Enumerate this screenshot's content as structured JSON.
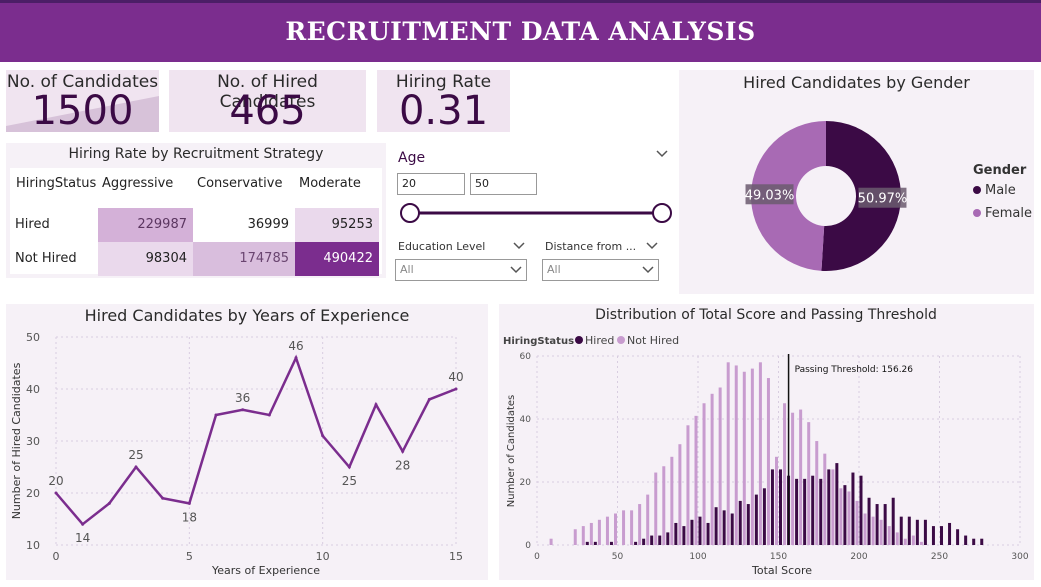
{
  "header": {
    "title": "RECRUITMENT DATA ANALYSIS"
  },
  "kpis": [
    {
      "label": "No. of Candidates",
      "value": "1500"
    },
    {
      "label": "No. of Hired Candidates",
      "value": "465"
    },
    {
      "label": "Hiring Rate",
      "value": "0.31"
    }
  ],
  "strategy_matrix": {
    "title": "Hiring Rate by Recruitment Strategy",
    "corner": "HiringStatus",
    "columns": [
      "Aggressive",
      "Conservative",
      "Moderate"
    ],
    "rows": [
      {
        "label": "Hired",
        "values": [
          "229987",
          "36999",
          "95253"
        ]
      },
      {
        "label": "Not Hired",
        "values": [
          "98304",
          "174785",
          "490422"
        ]
      }
    ],
    "colors": {
      "c1": "#d4b1d8",
      "c2": "#ead9ec",
      "c3": "#e5d2e8",
      "max": "#7b2d8e"
    }
  },
  "filters": {
    "age": {
      "title": "Age",
      "min": "20",
      "max": "50"
    },
    "education": {
      "label": "Education Level",
      "value": "All"
    },
    "distance": {
      "label": "Distance from ...",
      "value": "All"
    }
  },
  "gender_donut": {
    "title": "Hired Candidates by Gender",
    "legend_title": "Gender",
    "slices": [
      {
        "name": "Male",
        "value": 50.97,
        "label": "50.97%",
        "color": "#3b0a45"
      },
      {
        "name": "Female",
        "value": 49.03,
        "label": "49.03%",
        "color": "#a86ab4"
      }
    ]
  },
  "chart_data": [
    {
      "type": "line",
      "title": "Hired Candidates by Years of Experience",
      "xlabel": "Years of Experience",
      "ylabel": "Number of Hired Candidates",
      "xlim": [
        0,
        15
      ],
      "ylim": [
        10,
        50
      ],
      "xticks": [
        0,
        5,
        10,
        15
      ],
      "yticks": [
        10,
        20,
        30,
        40,
        50
      ],
      "color": "#7b2d8e",
      "x": [
        0,
        1,
        2,
        3,
        4,
        5,
        6,
        7,
        8,
        9,
        10,
        11,
        12,
        13,
        14,
        15
      ],
      "y": [
        20,
        14,
        18,
        25,
        19,
        18,
        35,
        36,
        35,
        46,
        31,
        25,
        37,
        28,
        38,
        40
      ],
      "labeled_points": [
        {
          "x": 0,
          "y": 20,
          "text": "20",
          "pos": "above"
        },
        {
          "x": 1,
          "y": 14,
          "text": "14",
          "pos": "below"
        },
        {
          "x": 3,
          "y": 25,
          "text": "25",
          "pos": "above"
        },
        {
          "x": 5,
          "y": 18,
          "text": "18",
          "pos": "below"
        },
        {
          "x": 7,
          "y": 36,
          "text": "36",
          "pos": "above"
        },
        {
          "x": 9,
          "y": 46,
          "text": "46",
          "pos": "above"
        },
        {
          "x": 11,
          "y": 25,
          "text": "25",
          "pos": "below"
        },
        {
          "x": 13,
          "y": 28,
          "text": "28",
          "pos": "below"
        },
        {
          "x": 15,
          "y": 40,
          "text": "40",
          "pos": "above"
        }
      ]
    },
    {
      "type": "bar",
      "title": "Distribution of Total Score and Passing Threshold",
      "xlabel": "Total Score",
      "ylabel": "Number of Candidates",
      "legend_title": "HiringStatus",
      "xlim": [
        0,
        300
      ],
      "ylim": [
        0,
        60
      ],
      "xticks": [
        0,
        50,
        100,
        150,
        200,
        250,
        300
      ],
      "yticks": [
        0,
        20,
        40,
        60
      ],
      "threshold": {
        "value": 156.26,
        "label": "Passing Threshold: 156.26"
      },
      "bin_centers": [
        10,
        15,
        20,
        25,
        30,
        35,
        40,
        45,
        50,
        55,
        60,
        65,
        70,
        75,
        80,
        85,
        90,
        95,
        100,
        105,
        110,
        115,
        120,
        125,
        130,
        135,
        140,
        145,
        150,
        155,
        160,
        165,
        170,
        175,
        180,
        185,
        190,
        195,
        200,
        205,
        210,
        215,
        220,
        225,
        230,
        235,
        240,
        245,
        250,
        255,
        260,
        265,
        270,
        275
      ],
      "series": [
        {
          "name": "Not Hired",
          "color": "#c89ccf",
          "values": [
            2,
            0,
            0,
            5,
            6,
            7,
            8,
            9,
            10,
            11,
            11,
            13,
            16,
            23,
            25,
            28,
            32,
            38,
            41,
            45,
            48,
            50,
            58,
            57,
            55,
            56,
            58,
            53,
            28,
            45,
            42,
            43,
            39,
            33,
            29,
            24,
            18,
            17,
            14,
            10,
            9,
            8,
            6,
            4,
            2,
            3,
            1,
            0,
            0,
            0,
            0,
            0,
            0,
            0
          ]
        },
        {
          "name": "Hired",
          "color": "#3b0a45",
          "values": [
            0,
            0,
            0,
            0,
            1,
            1,
            0,
            1,
            0,
            0,
            1,
            2,
            3,
            3,
            4,
            7,
            6,
            8,
            9,
            7,
            12,
            11,
            10,
            14,
            13,
            16,
            18,
            24,
            24,
            22,
            21,
            21,
            22,
            21,
            24,
            26,
            19,
            23,
            22,
            15,
            13,
            13,
            15,
            9,
            9,
            8,
            8,
            6,
            6,
            7,
            5,
            3,
            2,
            2
          ]
        }
      ]
    }
  ]
}
